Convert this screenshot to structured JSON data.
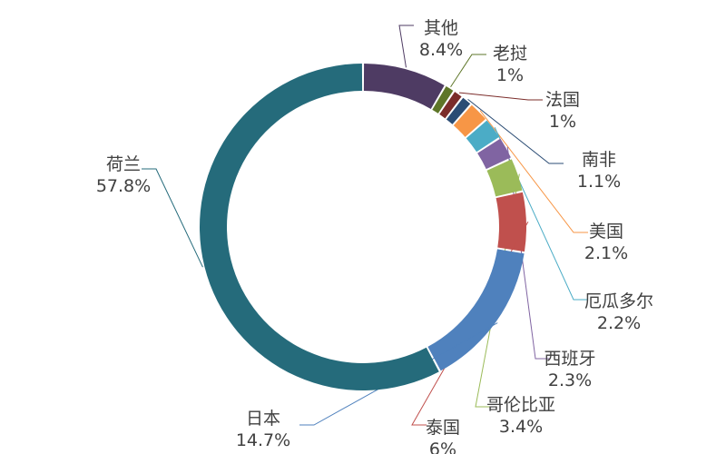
{
  "chart_data": {
    "type": "pie",
    "variant": "donut",
    "title": "",
    "legend": "none",
    "slices": [
      {
        "label": "其他",
        "value": 8.4,
        "value_label": "8.4%",
        "color": "#4E3B63"
      },
      {
        "label": "老挝",
        "value": 1,
        "value_label": "1%",
        "color": "#5E7628"
      },
      {
        "label": "法国",
        "value": 1,
        "value_label": "1%",
        "color": "#7B2C2A"
      },
      {
        "label": "南非",
        "value": 1.1,
        "value_label": "1.1%",
        "color": "#2B4C74"
      },
      {
        "label": "美国",
        "value": 2.1,
        "value_label": "2.1%",
        "color": "#F79646"
      },
      {
        "label": "厄瓜多尔",
        "value": 2.2,
        "value_label": "2.2%",
        "color": "#4BACC6"
      },
      {
        "label": "西班牙",
        "value": 2.3,
        "value_label": "2.3%",
        "color": "#8064A2"
      },
      {
        "label": "哥伦比亚",
        "value": 3.4,
        "value_label": "3.4%",
        "color": "#9BBB59"
      },
      {
        "label": "泰国",
        "value": 6,
        "value_label": "6%",
        "color": "#C0504D"
      },
      {
        "label": "日本",
        "value": 14.7,
        "value_label": "14.7%",
        "color": "#4F81BD"
      },
      {
        "label": "荷兰",
        "value": 57.8,
        "value_label": "57.8%",
        "color": "#256B7B"
      }
    ]
  }
}
